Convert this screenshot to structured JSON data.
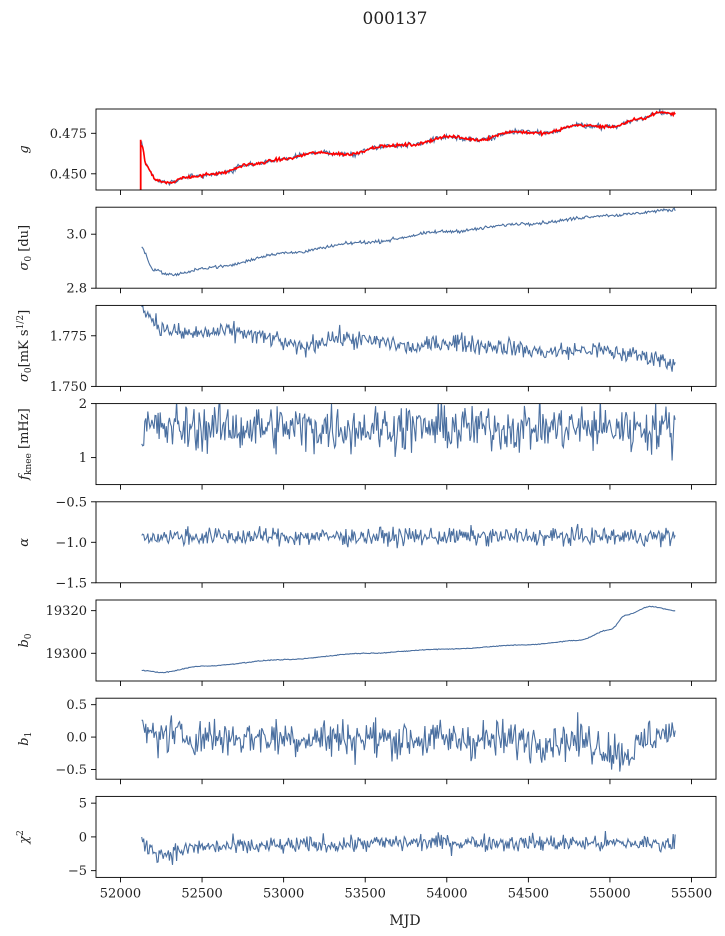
{
  "figure": {
    "title": "000137",
    "xlabel": "MJD",
    "series_color": "#4a6fa0",
    "overlay_color": "#ff0000"
  },
  "chart_data": {
    "type": "line",
    "x_range": [
      52130,
      55400
    ],
    "xlim": [
      51850,
      55650
    ],
    "xticks": [
      52000,
      52500,
      53000,
      53500,
      54000,
      54500,
      55000,
      55500
    ],
    "panels": [
      {
        "id": "g",
        "ylabel": "g",
        "ylim": [
          0.44,
          0.49
        ],
        "yticks": [
          0.45,
          0.475
        ],
        "yticklabels": [
          "0.450",
          "0.475"
        ],
        "noise": 0.0008,
        "overlay": true,
        "anchors": [
          [
            52130,
            0.468
          ],
          [
            52160,
            0.455
          ],
          [
            52220,
            0.446
          ],
          [
            52300,
            0.444
          ],
          [
            52400,
            0.448
          ],
          [
            52600,
            0.45
          ],
          [
            52800,
            0.456
          ],
          [
            53000,
            0.459
          ],
          [
            53200,
            0.463
          ],
          [
            53400,
            0.462
          ],
          [
            53600,
            0.467
          ],
          [
            53800,
            0.468
          ],
          [
            54000,
            0.473
          ],
          [
            54200,
            0.471
          ],
          [
            54400,
            0.476
          ],
          [
            54600,
            0.475
          ],
          [
            54800,
            0.48
          ],
          [
            55000,
            0.479
          ],
          [
            55200,
            0.484
          ],
          [
            55300,
            0.488
          ],
          [
            55400,
            0.487
          ]
        ]
      },
      {
        "id": "sigma0-du",
        "ylabel": "σ₀ [du]",
        "ylim": [
          2.8,
          3.1
        ],
        "yticks": [
          2.8,
          3.0
        ],
        "yticklabels": [
          "2.8",
          "3.0"
        ],
        "noise": 0.003,
        "overlay": false,
        "anchors": [
          [
            52130,
            2.95
          ],
          [
            52200,
            2.87
          ],
          [
            52300,
            2.85
          ],
          [
            52600,
            2.88
          ],
          [
            53000,
            2.93
          ],
          [
            53500,
            2.97
          ],
          [
            54000,
            3.01
          ],
          [
            54500,
            3.04
          ],
          [
            55000,
            3.07
          ],
          [
            55400,
            3.09
          ]
        ]
      },
      {
        "id": "sigma0-mks",
        "ylabel": "σ₀[mK s^1/2]",
        "ylim": [
          1.75,
          1.79
        ],
        "yticks": [
          1.75,
          1.775
        ],
        "yticklabels": [
          "1.750",
          "1.775"
        ],
        "noise": 0.0022,
        "overlay": false,
        "anchors": [
          [
            52130,
            1.79
          ],
          [
            52200,
            1.783
          ],
          [
            52260,
            1.778
          ],
          [
            52400,
            1.776
          ],
          [
            52700,
            1.777
          ],
          [
            52900,
            1.774
          ],
          [
            53100,
            1.769
          ],
          [
            53300,
            1.774
          ],
          [
            53600,
            1.772
          ],
          [
            53800,
            1.769
          ],
          [
            54000,
            1.772
          ],
          [
            54300,
            1.77
          ],
          [
            54600,
            1.767
          ],
          [
            54900,
            1.768
          ],
          [
            55100,
            1.766
          ],
          [
            55300,
            1.764
          ],
          [
            55400,
            1.761
          ]
        ]
      },
      {
        "id": "fknee",
        "ylabel": "f_knee [mHz]",
        "ylim": [
          0.5,
          2.0
        ],
        "yticks": [
          1,
          2
        ],
        "yticklabels": [
          "1",
          "2"
        ],
        "noise": 0.22,
        "overlay": false,
        "anchors": [
          [
            52130,
            1.55
          ],
          [
            55400,
            1.55
          ]
        ]
      },
      {
        "id": "alpha",
        "ylabel": "α",
        "ylim": [
          -1.5,
          -0.5
        ],
        "yticks": [
          -1.5,
          -1.0,
          -0.5
        ],
        "yticklabels": [
          "−1.5",
          "−1.0",
          "−0.5"
        ],
        "noise": 0.055,
        "overlay": false,
        "anchors": [
          [
            52130,
            -0.93
          ],
          [
            55400,
            -0.93
          ]
        ]
      },
      {
        "id": "b0",
        "ylabel": "b₀",
        "ylim": [
          19287,
          19325
        ],
        "yticks": [
          19300,
          19320
        ],
        "yticklabels": [
          "19300",
          "19320"
        ],
        "noise": 0.1,
        "overlay": false,
        "anchors": [
          [
            52130,
            19292
          ],
          [
            52250,
            19291
          ],
          [
            52500,
            19294
          ],
          [
            53000,
            19297
          ],
          [
            53500,
            19300
          ],
          [
            54000,
            19302
          ],
          [
            54500,
            19304
          ],
          [
            54800,
            19306
          ],
          [
            55000,
            19311
          ],
          [
            55100,
            19318
          ],
          [
            55250,
            19322
          ],
          [
            55400,
            19320
          ]
        ]
      },
      {
        "id": "b1",
        "ylabel": "b₁",
        "ylim": [
          -0.65,
          0.6
        ],
        "yticks": [
          -0.5,
          0.0,
          0.5
        ],
        "yticklabels": [
          "−0.5",
          "0.0",
          "0.5"
        ],
        "noise": 0.15,
        "overlay": false,
        "anchors": [
          [
            52130,
            0.05
          ],
          [
            52500,
            0.0
          ],
          [
            54800,
            -0.05
          ],
          [
            55100,
            -0.25
          ],
          [
            55300,
            0.05
          ],
          [
            55400,
            0.05
          ]
        ]
      },
      {
        "id": "chi2",
        "ylabel": "χ²",
        "ylim": [
          -6,
          6
        ],
        "yticks": [
          -5,
          0,
          5
        ],
        "yticklabels": [
          "−5",
          "0",
          "5"
        ],
        "noise": 0.65,
        "overlay": false,
        "anchors": [
          [
            52130,
            -1.0
          ],
          [
            52250,
            -2.5
          ],
          [
            52500,
            -1.5
          ],
          [
            54000,
            -0.8
          ],
          [
            55400,
            -1.0
          ]
        ]
      }
    ]
  }
}
